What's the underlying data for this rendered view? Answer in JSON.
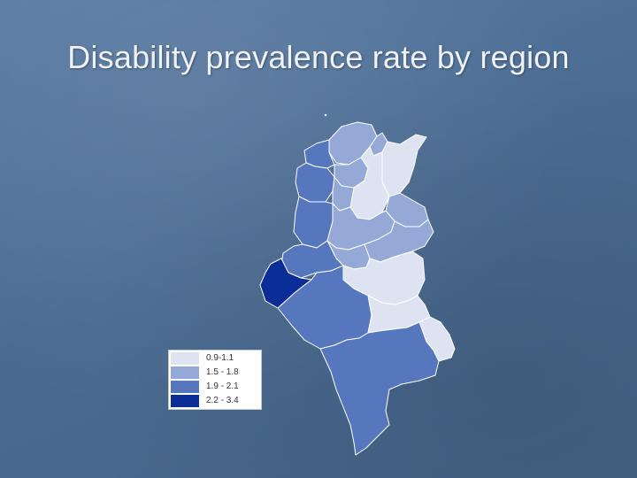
{
  "slide": {
    "title": "Disability prevalence rate by region"
  },
  "map": {
    "country": "Tunisia",
    "legend": {
      "items": [
        {
          "label": "0.9-1.1",
          "color": "#dde3f0"
        },
        {
          "label": "1.5 - 1.8",
          "color": "#94a9d6"
        },
        {
          "label": "1.9 - 2.1",
          "color": "#5676bd"
        },
        {
          "label": "2.2 - 3.4",
          "color": "#0a2e95"
        }
      ]
    },
    "regions": [
      {
        "name": "bizerte",
        "class_index": 1
      },
      {
        "name": "tunis",
        "class_index": 1
      },
      {
        "name": "nabeul",
        "class_index": 0
      },
      {
        "name": "jendouba",
        "class_index": 2
      },
      {
        "name": "beja",
        "class_index": 1
      },
      {
        "name": "zaghouan",
        "class_index": 0
      },
      {
        "name": "kef",
        "class_index": 2
      },
      {
        "name": "siliana",
        "class_index": 1
      },
      {
        "name": "sousse-monastir",
        "class_index": 1
      },
      {
        "name": "kasserine",
        "class_index": 2
      },
      {
        "name": "kairouan",
        "class_index": 1
      },
      {
        "name": "mahdia",
        "class_index": 1
      },
      {
        "name": "sidi-bouzid",
        "class_index": 1
      },
      {
        "name": "gafsa",
        "class_index": 2
      },
      {
        "name": "tozeur",
        "class_index": 3
      },
      {
        "name": "sfax",
        "class_index": 0
      },
      {
        "name": "kebili",
        "class_index": 2
      },
      {
        "name": "gabes",
        "class_index": 0
      },
      {
        "name": "medenine",
        "class_index": 0
      },
      {
        "name": "tataouine",
        "class_index": 2
      }
    ]
  }
}
